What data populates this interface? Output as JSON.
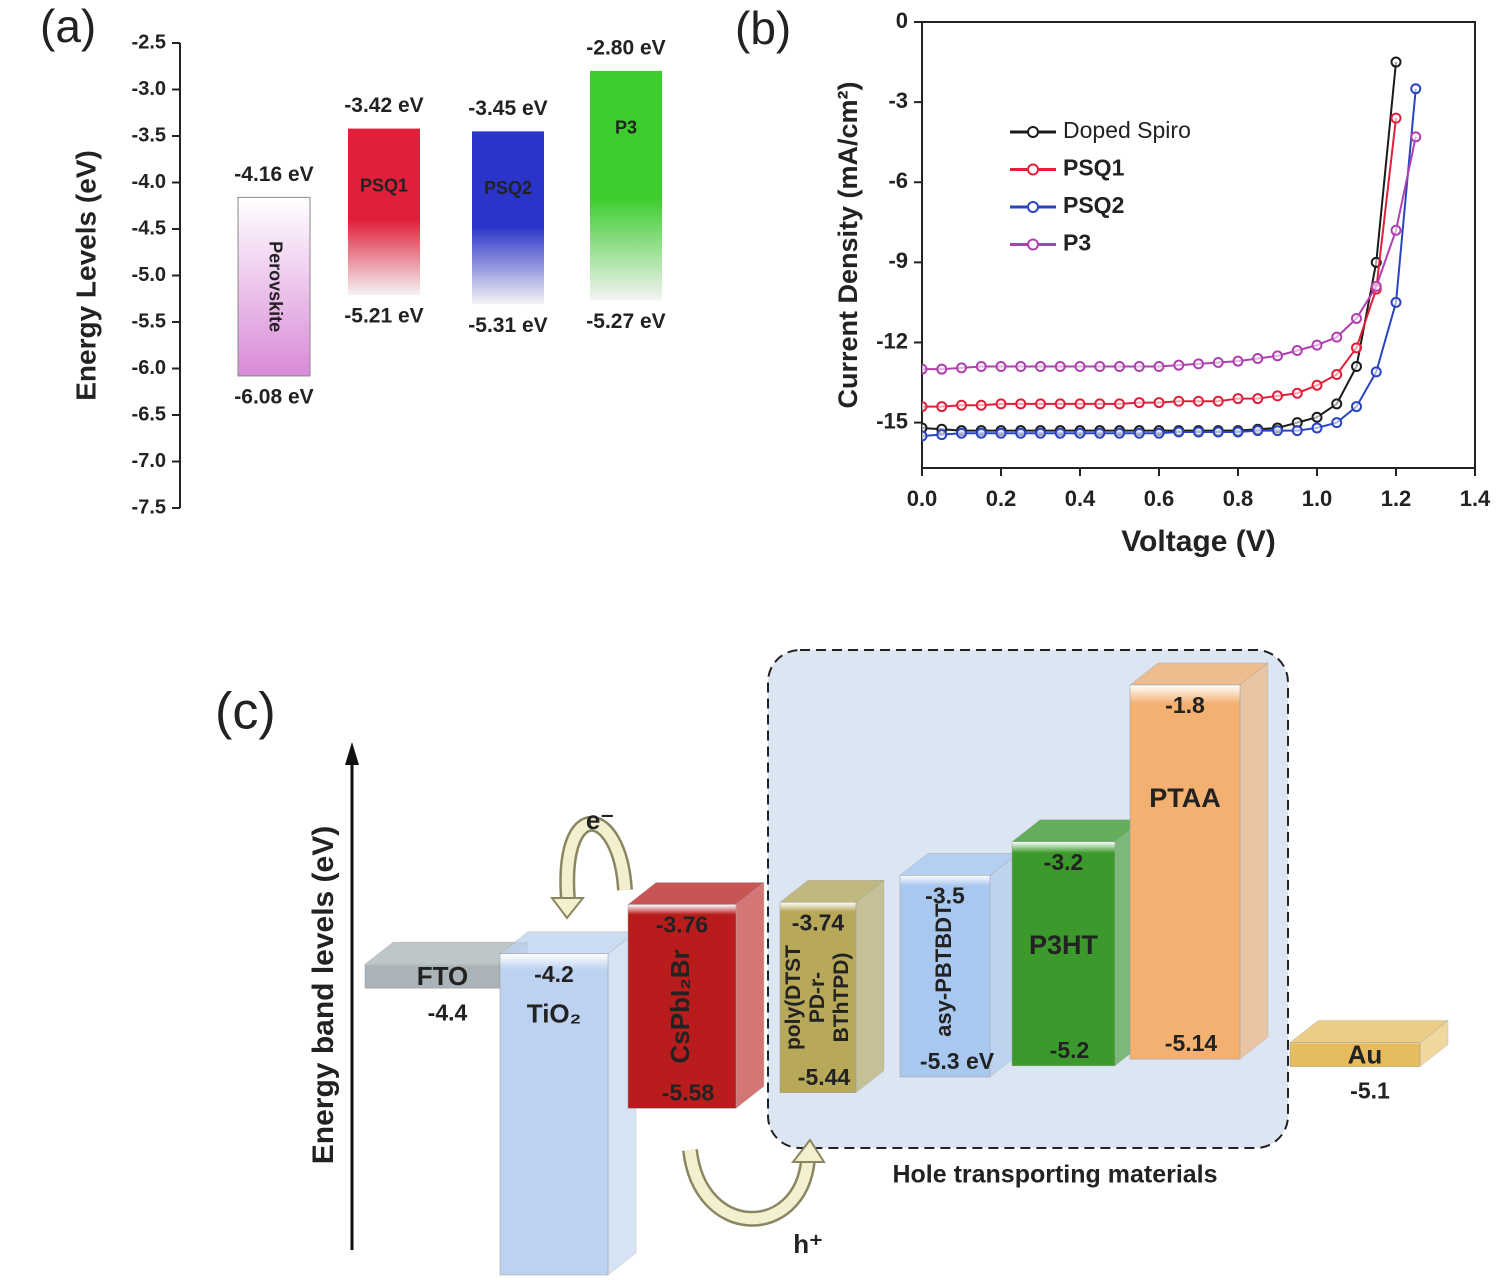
{
  "chart_data": [
    {
      "type": "energy-level",
      "panel": "(a)",
      "ylabel": "Energy Levels (eV)",
      "ylim": [
        -7.5,
        -2.5
      ],
      "yticks": [
        -2.5,
        {
          "value": -3,
          "label": "-3.0"
        },
        -3.5,
        {
          "value": -4,
          "label": "-4.0"
        },
        -4.5,
        {
          "value": -5,
          "label": "-5.0"
        },
        -5.5,
        {
          "value": -6,
          "label": "-6.0"
        },
        -6.5,
        {
          "value": -7,
          "label": "-7.0"
        },
        -7.5
      ],
      "categories": [
        "Perovskite",
        "PSQ1",
        "PSQ2",
        "P3"
      ],
      "colors": [
        "#d98ad8",
        "#e0203a",
        "#2a34c8",
        "#3ccc2c"
      ],
      "top": [
        -4.16,
        -3.42,
        -3.45,
        -2.8
      ],
      "top_labels": [
        "-4.16 eV",
        "-3.42 eV",
        "-3.45 eV",
        "-2.80 eV"
      ],
      "bottom": [
        -6.08,
        -5.21,
        -5.31,
        -5.27
      ],
      "bottom_labels": [
        "-6.08 eV",
        "-5.21 eV",
        "-5.31 eV",
        "-5.27 eV"
      ]
    },
    {
      "type": "line",
      "panel": "(b)",
      "xlabel": "Voltage (V)",
      "ylabel": "Current Density (mA/cm²)",
      "xlim": [
        0,
        1.4
      ],
      "xticks": [
        {
          "value": 0,
          "label": "0.0"
        },
        0.2,
        0.4,
        0.6,
        0.8,
        {
          "value": 1,
          "label": "1.0"
        },
        1.2,
        1.4
      ],
      "ylim": [
        -16.7,
        0
      ],
      "yticks": [
        0,
        -3,
        -6,
        -9,
        -12,
        -15
      ],
      "legend": "upper left",
      "x": [
        0,
        0.05,
        0.1,
        0.15,
        0.2,
        0.25,
        0.3,
        0.35,
        0.4,
        0.45,
        0.5,
        0.55,
        0.6,
        0.65,
        0.7,
        0.75,
        0.8,
        0.85,
        0.9,
        0.95,
        1.0,
        1.05,
        1.1,
        1.15,
        1.2,
        1.25,
        1.3
      ],
      "series": [
        {
          "name": "Doped Spiro",
          "color": "#1a1a1a",
          "values": [
            -15.2,
            -15.25,
            -15.3,
            -15.3,
            -15.3,
            -15.3,
            -15.3,
            -15.3,
            -15.3,
            -15.3,
            -15.3,
            -15.3,
            -15.3,
            -15.3,
            -15.3,
            -15.3,
            -15.3,
            -15.25,
            -15.2,
            -15.0,
            -14.8,
            -14.3,
            -12.9,
            -9.0,
            -1.5,
            null,
            null
          ]
        },
        {
          "name": "PSQ1",
          "color": "#e0203a",
          "values": [
            -14.4,
            -14.4,
            -14.35,
            -14.35,
            -14.3,
            -14.3,
            -14.3,
            -14.3,
            -14.3,
            -14.3,
            -14.3,
            -14.25,
            -14.25,
            -14.2,
            -14.2,
            -14.2,
            -14.1,
            -14.1,
            -14.0,
            -13.9,
            -13.6,
            -13.2,
            -12.2,
            -10.0,
            -3.6,
            null,
            null
          ]
        },
        {
          "name": "PSQ2",
          "color": "#2a44c0",
          "values": [
            -15.5,
            -15.45,
            -15.4,
            -15.4,
            -15.4,
            -15.4,
            -15.4,
            -15.4,
            -15.4,
            -15.4,
            -15.4,
            -15.4,
            -15.4,
            -15.35,
            -15.35,
            -15.35,
            -15.35,
            -15.3,
            -15.3,
            -15.3,
            -15.2,
            -15.0,
            -14.4,
            -13.1,
            -10.5,
            -2.5,
            null
          ]
        },
        {
          "name": "P3",
          "color": "#b040b0",
          "values": [
            -13.0,
            -13.0,
            -12.95,
            -12.9,
            -12.9,
            -12.9,
            -12.9,
            -12.9,
            -12.9,
            -12.9,
            -12.9,
            -12.9,
            -12.9,
            -12.85,
            -12.8,
            -12.75,
            -12.7,
            -12.6,
            -12.5,
            -12.3,
            -12.1,
            -11.8,
            -11.1,
            -9.9,
            -7.8,
            -4.3,
            null
          ]
        }
      ]
    },
    {
      "type": "band-diagram",
      "panel": "(c)",
      "ylabel": "Energy band levels (eV)",
      "annotations": {
        "electron": "e⁻",
        "hole": "h⁺",
        "group": "Hole transporting materials"
      },
      "materials": [
        {
          "name": "FTO",
          "level": -4.4,
          "level_label": "-4.4",
          "color": "#a9b3b8"
        },
        {
          "name": "TiO₂",
          "top": -4.2,
          "top_label": "-4.2",
          "color": "#bcd2f0"
        },
        {
          "name": "CsPbI₂Br",
          "top": -3.76,
          "top_label": "-3.76",
          "bottom": -5.58,
          "bottom_label": "-5.58",
          "color": "#b81c1c"
        },
        {
          "name": "poly(DTST PD-r- BThTPD)",
          "top": -3.74,
          "top_label": "-3.74",
          "bottom": -5.44,
          "bottom_label": "-5.44",
          "color": "#b8a85a"
        },
        {
          "name": "asy-PBTBDT",
          "top": -3.5,
          "top_label": "-3.5",
          "bottom": -5.3,
          "bottom_label": "-5.3 eV",
          "color": "#a9c8f0"
        },
        {
          "name": "P3HT",
          "top": -3.2,
          "top_label": "-3.2",
          "bottom": -5.2,
          "bottom_label": "-5.2",
          "color": "#3c9a2c"
        },
        {
          "name": "PTAA",
          "top": -1.8,
          "top_label": "-1.8",
          "bottom": -5.14,
          "bottom_label": "-5.14",
          "color": "#f3b070"
        },
        {
          "name": "Au",
          "level": -5.1,
          "level_label": "-5.1",
          "color": "#e6bd5e"
        }
      ]
    }
  ]
}
